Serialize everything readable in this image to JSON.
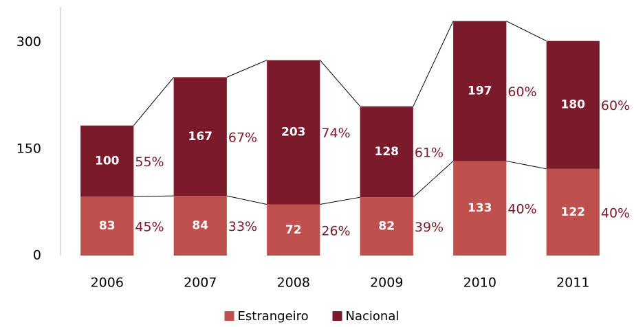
{
  "chart_data": {
    "type": "stacked_bar",
    "categories": [
      "2006",
      "2007",
      "2008",
      "2009",
      "2010",
      "2011"
    ],
    "series": [
      {
        "name": "Estrangeiro",
        "color": "#c0504d",
        "values": [
          83,
          84,
          72,
          82,
          133,
          122
        ],
        "share_labels": [
          "45%",
          "33%",
          "26%",
          "39%",
          "40%",
          "40%"
        ]
      },
      {
        "name": "Nacional",
        "color": "#7b1a2b",
        "values": [
          100,
          167,
          203,
          128,
          197,
          180
        ],
        "share_labels": [
          "55%",
          "67%",
          "74%",
          "61%",
          "60%",
          "60%"
        ]
      }
    ],
    "ylim": [
      0,
      350
    ],
    "yticks": [
      0,
      150,
      300
    ],
    "grid": false,
    "legend": "bottom"
  }
}
